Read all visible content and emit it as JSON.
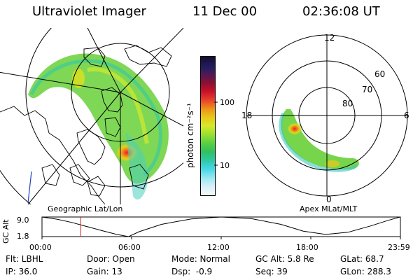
{
  "header": {
    "title": "Ultraviolet Imager",
    "date": "11 Dec 00",
    "time": "02:36:08 UT"
  },
  "geo_panel": {
    "caption": "Geographic Lat/Lon"
  },
  "apex_panel": {
    "caption": "Apex MLat/MLT",
    "mlt_labels": [
      "12",
      "18",
      "6",
      "0"
    ],
    "lat_labels": [
      "60",
      "70",
      "80"
    ]
  },
  "colorbar": {
    "label": "photon cm⁻²s⁻¹",
    "ticks": [
      "100",
      "10"
    ],
    "colors": [
      "#1a0a30",
      "#1c1c5a",
      "#4a1a5a",
      "#8a1030",
      "#c8102a",
      "#e8402a",
      "#f0901a",
      "#e8c81a",
      "#d8e82a",
      "#98e030",
      "#58d040",
      "#30c060",
      "#30c8a8",
      "#48d8e8",
      "#98e8f0",
      "#d8f0f8",
      "#f4f8fc"
    ]
  },
  "altitude_plot": {
    "ylabel": "GC Alt",
    "y_ticks": [
      "9.0",
      "1.8"
    ],
    "x_ticks": [
      "00:00",
      "06:00",
      "12:00",
      "18:00",
      "23:59"
    ]
  },
  "chart_data": {
    "type": "line",
    "title": "",
    "xlabel": "",
    "ylabel": "GC Alt",
    "x_unit": "hours UT",
    "xlim": [
      0,
      24
    ],
    "ylim": [
      1.8,
      9.0
    ],
    "series": [
      {
        "x": [
          0,
          1,
          2,
          3,
          4,
          5,
          5.8,
          6.5,
          8,
          10,
          12,
          14,
          16,
          17.5,
          19,
          20.5,
          22,
          23.2,
          23.98
        ],
        "values": [
          9.0,
          8.2,
          7.0,
          5.5,
          4.0,
          2.6,
          1.8,
          3.6,
          6.3,
          8.3,
          9.0,
          8.4,
          6.3,
          3.8,
          2.6,
          3.4,
          5.7,
          7.8,
          9.0
        ]
      }
    ],
    "marker_time": 2.6
  },
  "footer": {
    "row1": [
      "Flt: LBHL",
      "Door: Open",
      "Mode: Normal",
      "GC Alt: 5.8 Re",
      "GLat: 68.7"
    ],
    "row2": [
      "IP: 36.0",
      "Gain: 13",
      "Dsp:  -0.9",
      "Seq: 39",
      "GLon: 288.3"
    ]
  }
}
